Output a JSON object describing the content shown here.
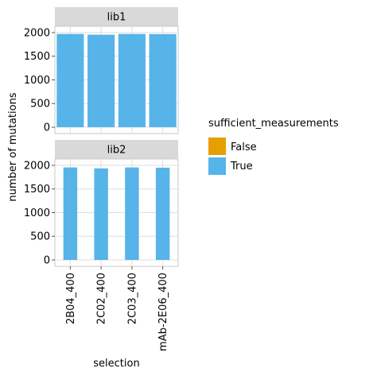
{
  "chart_data": {
    "type": "bar",
    "layout": "faceted",
    "categories": [
      "2B04_400",
      "2C02_400",
      "2C03_400",
      "mAb-2E06_400"
    ],
    "xlabel": "selection",
    "ylabel": "number of mutations",
    "ylim": [
      0,
      2100
    ],
    "yticks": [
      0,
      500,
      1000,
      1500,
      2000
    ],
    "grid": true,
    "legend": {
      "title": "sufficient_measurements",
      "position": "right",
      "entries": [
        {
          "label": "False",
          "color": "#E69F00"
        },
        {
          "label": "True",
          "color": "#56B4E9"
        }
      ]
    },
    "facets": [
      {
        "label": "lib1",
        "series": [
          {
            "name": "False",
            "values": [
              0,
              0,
              0,
              0
            ],
            "color": "#E69F00"
          },
          {
            "name": "True",
            "values": [
              1970,
              1955,
              1970,
              1968
            ],
            "color": "#56B4E9"
          }
        ]
      },
      {
        "label": "lib2",
        "series": [
          {
            "name": "False",
            "values": [
              0,
              0,
              0,
              0
            ],
            "color": "#E69F00"
          },
          {
            "name": "True",
            "values": [
              1955,
              1935,
              1955,
              1950
            ],
            "color": "#56B4E9"
          }
        ]
      }
    ]
  }
}
